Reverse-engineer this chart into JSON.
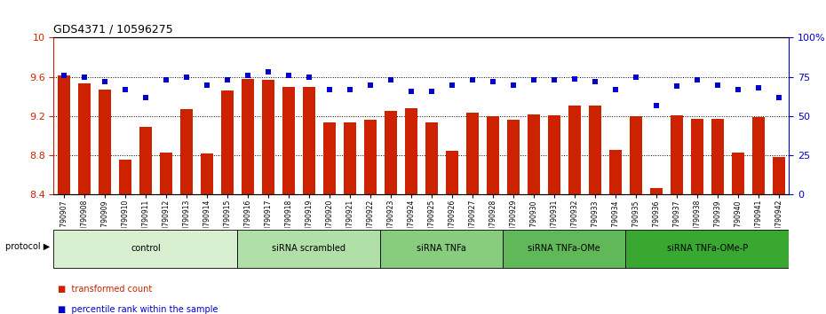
{
  "title": "GDS4371 / 10596275",
  "samples": [
    "GSM790907",
    "GSM790908",
    "GSM790909",
    "GSM790910",
    "GSM790911",
    "GSM790912",
    "GSM790913",
    "GSM790914",
    "GSM790915",
    "GSM790916",
    "GSM790917",
    "GSM790918",
    "GSM790919",
    "GSM790920",
    "GSM790921",
    "GSM790922",
    "GSM790923",
    "GSM790924",
    "GSM790925",
    "GSM790926",
    "GSM790927",
    "GSM790928",
    "GSM790929",
    "GSM790930",
    "GSM790931",
    "GSM790932",
    "GSM790933",
    "GSM790934",
    "GSM790935",
    "GSM790936",
    "GSM790937",
    "GSM790938",
    "GSM790939",
    "GSM790940",
    "GSM790941",
    "GSM790942"
  ],
  "bar_values": [
    9.62,
    9.53,
    9.47,
    8.76,
    9.09,
    8.83,
    9.27,
    8.82,
    9.46,
    9.58,
    9.57,
    9.5,
    9.5,
    9.14,
    9.14,
    9.16,
    9.25,
    9.28,
    9.14,
    8.85,
    9.24,
    9.2,
    9.16,
    9.22,
    9.21,
    9.31,
    9.31,
    8.86,
    9.2,
    8.47,
    9.21,
    9.17,
    9.17,
    8.83,
    9.19,
    8.78
  ],
  "percentile_values": [
    76,
    75,
    72,
    67,
    62,
    73,
    75,
    70,
    73,
    76,
    78,
    76,
    75,
    67,
    67,
    70,
    73,
    66,
    66,
    70,
    73,
    72,
    70,
    73,
    73,
    74,
    72,
    67,
    75,
    57,
    69,
    73,
    70,
    67,
    68,
    62
  ],
  "groups": [
    {
      "label": "control",
      "start": 0,
      "end": 9,
      "color": "#d8f0d0"
    },
    {
      "label": "siRNA scrambled",
      "start": 9,
      "end": 16,
      "color": "#b0e0a8"
    },
    {
      "label": "siRNA TNFa",
      "start": 16,
      "end": 22,
      "color": "#88cc80"
    },
    {
      "label": "siRNA TNFa-OMe",
      "start": 22,
      "end": 28,
      "color": "#60b858"
    },
    {
      "label": "siRNA TNFa-OMe-P",
      "start": 28,
      "end": 36,
      "color": "#38a830"
    }
  ],
  "ylim_left": [
    8.4,
    10.0
  ],
  "ylim_right": [
    0,
    100
  ],
  "yticks_left": [
    8.4,
    8.8,
    9.2,
    9.6,
    10.0
  ],
  "yticks_right": [
    0,
    25,
    50,
    75,
    100
  ],
  "ytick_labels_left": [
    "8.4",
    "8.8",
    "9.2",
    "9.6",
    "10"
  ],
  "ytick_labels_right": [
    "0",
    "25",
    "50",
    "75",
    "100%"
  ],
  "hgrid_vals": [
    8.8,
    9.2,
    9.6
  ],
  "bar_color": "#cc2200",
  "dot_color": "#0000cc",
  "bg_color": "#ffffff",
  "protocol_label": "protocol",
  "legend1": "transformed count",
  "legend2": "percentile rank within the sample"
}
